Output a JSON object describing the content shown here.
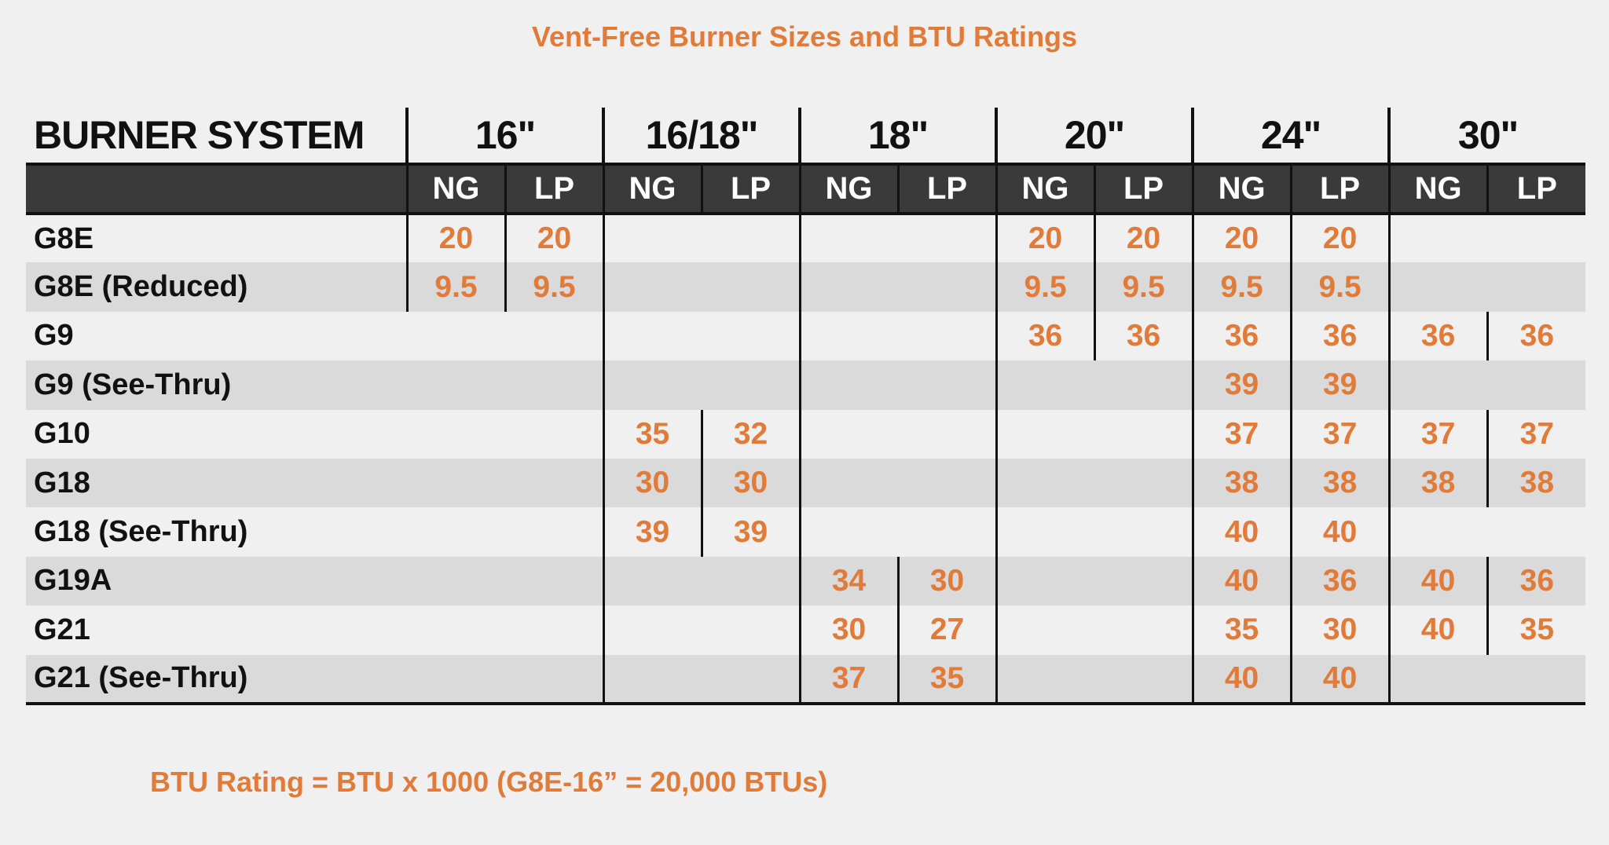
{
  "title": "Vent-Free Burner Sizes and BTU Ratings",
  "table": {
    "corner_header": "BURNER SYSTEM",
    "groups": [
      "16\"",
      "16/18\"",
      "18\"",
      "20\"",
      "24\"",
      "30\""
    ],
    "subheaders": [
      "NG",
      "LP"
    ],
    "rows": [
      {
        "label": "G8E",
        "values": [
          "20",
          "20",
          "",
          "",
          "",
          "",
          "20",
          "20",
          "20",
          "20",
          "",
          ""
        ]
      },
      {
        "label": "G8E (Reduced)",
        "values": [
          "9.5",
          "9.5",
          "",
          "",
          "",
          "",
          "9.5",
          "9.5",
          "9.5",
          "9.5",
          "",
          ""
        ]
      },
      {
        "label": "G9",
        "values": [
          "",
          "",
          "",
          "",
          "",
          "",
          "36",
          "36",
          "36",
          "36",
          "36",
          "36"
        ]
      },
      {
        "label": "G9 (See-Thru)",
        "values": [
          "",
          "",
          "",
          "",
          "",
          "",
          "",
          "",
          "39",
          "39",
          "",
          ""
        ]
      },
      {
        "label": "G10",
        "values": [
          "",
          "",
          "35",
          "32",
          "",
          "",
          "",
          "",
          "37",
          "37",
          "37",
          "37"
        ]
      },
      {
        "label": "G18",
        "values": [
          "",
          "",
          "30",
          "30",
          "",
          "",
          "",
          "",
          "38",
          "38",
          "38",
          "38"
        ]
      },
      {
        "label": "G18 (See-Thru)",
        "values": [
          "",
          "",
          "39",
          "39",
          "",
          "",
          "",
          "",
          "40",
          "40",
          "",
          ""
        ]
      },
      {
        "label": "G19A",
        "values": [
          "",
          "",
          "",
          "",
          "34",
          "30",
          "",
          "",
          "40",
          "36",
          "40",
          "36"
        ]
      },
      {
        "label": "G21",
        "values": [
          "",
          "",
          "",
          "",
          "30",
          "27",
          "",
          "",
          "35",
          "30",
          "40",
          "35"
        ]
      },
      {
        "label": "G21 (See-Thru)",
        "values": [
          "",
          "",
          "",
          "",
          "37",
          "35",
          "",
          "",
          "40",
          "40",
          "",
          ""
        ]
      }
    ]
  },
  "footnote": "BTU Rating = BTU x 1000 (G8E-16” = 20,000 BTUs)",
  "colors": {
    "accent": "#e07b39",
    "header_bar": "#3a3a3a",
    "stripe": "#dadada",
    "background": "#f0f0f0"
  }
}
